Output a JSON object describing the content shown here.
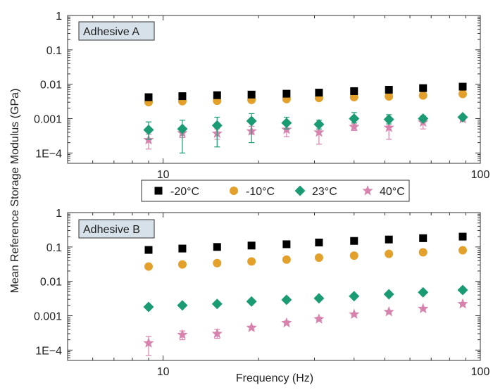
{
  "chart_data": {
    "type": "scatter",
    "ylabel": "Mean Reference Storage Modulus (GPa)",
    "xlabel": "Frequency (Hz)",
    "x_scale": "log",
    "y_scale": "log",
    "xlim": [
      5,
      100
    ],
    "ylim": [
      5e-05,
      1
    ],
    "x_ticks": [
      {
        "value": 10,
        "label": "10"
      },
      {
        "value": 100,
        "label": "100"
      }
    ],
    "y_ticks": [
      {
        "value": 1,
        "label": "1"
      },
      {
        "value": 0.1,
        "label": "0.1"
      },
      {
        "value": 0.01,
        "label": "0.01"
      },
      {
        "value": 0.001,
        "label": "0.001"
      },
      {
        "value": 0.0001,
        "label": "1E−4"
      }
    ],
    "legend": {
      "placement": "between panels",
      "entries": [
        {
          "series": "-20°C",
          "label": "-20°C",
          "marker": "square",
          "color": "#000000"
        },
        {
          "series": "-10°C",
          "label": "-10°C",
          "marker": "circle",
          "color": "#E3A02A"
        },
        {
          "series": "23°C",
          "label": "23°C",
          "marker": "diamond",
          "color": "#1A9B73"
        },
        {
          "series": "40°C",
          "label": "40°C",
          "marker": "star",
          "color": "#D783AE"
        }
      ]
    },
    "x": [
      9,
      11.5,
      14.8,
      19,
      24.5,
      31,
      40,
      51.5,
      66,
      88
    ],
    "panels": [
      {
        "label": "Adhesive A",
        "series": [
          {
            "name": "-20°C",
            "values": [
              0.0042,
              0.0045,
              0.0048,
              0.005,
              0.0053,
              0.0057,
              0.0063,
              0.0069,
              0.0077,
              0.0085
            ]
          },
          {
            "name": "-10°C",
            "values": [
              0.003,
              0.0032,
              0.0033,
              0.0035,
              0.0037,
              0.004,
              0.0042,
              0.0044,
              0.0047,
              0.0052
            ]
          },
          {
            "name": "23°C",
            "values": [
              0.00047,
              0.0005,
              0.00063,
              0.00085,
              0.00075,
              0.00068,
              0.001,
              0.00095,
              0.001,
              0.0011
            ],
            "err_low": [
              0.00025,
              0.0001,
              0.00015,
              0.0002,
              0.0005,
              0.0005,
              0.00075,
              0.0007,
              0.00085,
              0.001
            ],
            "err_high": [
              0.0008,
              0.0009,
              0.0011,
              0.0014,
              0.0011,
              0.0009,
              0.0015,
              0.0013,
              0.0012,
              0.0012
            ]
          },
          {
            "name": "40°C",
            "values": [
              0.00024,
              0.00038,
              0.00037,
              0.00043,
              0.00048,
              0.0004,
              0.00058,
              0.00055,
              0.00078,
              0.00098
            ],
            "err_low": [
              0.00013,
              0.00028,
              0.00025,
              0.00035,
              0.0003,
              0.00018,
              0.00045,
              0.00025,
              0.0005,
              0.0009
            ],
            "err_high": [
              0.00035,
              0.0005,
              0.0005,
              0.0006,
              0.00065,
              0.00062,
              0.0007,
              0.0008,
              0.001,
              0.0011
            ]
          }
        ]
      },
      {
        "label": "Adhesive B",
        "series": [
          {
            "name": "-20°C",
            "values": [
              0.082,
              0.09,
              0.1,
              0.11,
              0.12,
              0.135,
              0.15,
              0.165,
              0.18,
              0.2
            ]
          },
          {
            "name": "-10°C",
            "values": [
              0.027,
              0.031,
              0.034,
              0.038,
              0.043,
              0.049,
              0.056,
              0.063,
              0.07,
              0.08
            ]
          },
          {
            "name": "23°C",
            "values": [
              0.0018,
              0.002,
              0.0022,
              0.0026,
              0.0029,
              0.0032,
              0.0037,
              0.0042,
              0.0048,
              0.0056
            ]
          },
          {
            "name": "40°C",
            "values": [
              0.00016,
              0.00028,
              0.0003,
              0.00045,
              0.00062,
              0.0008,
              0.0011,
              0.0013,
              0.0016,
              0.0022
            ],
            "err_low": [
              7e-05,
              0.0002,
              0.00022,
              0.0004,
              0.00055,
              0.00072,
              0.001,
              0.0012,
              0.0015,
              0.0021
            ],
            "err_high": [
              0.00025,
              0.00036,
              0.0004,
              0.0005,
              0.0007,
              0.0009,
              0.0012,
              0.0014,
              0.0017,
              0.0023
            ]
          }
        ]
      }
    ]
  }
}
